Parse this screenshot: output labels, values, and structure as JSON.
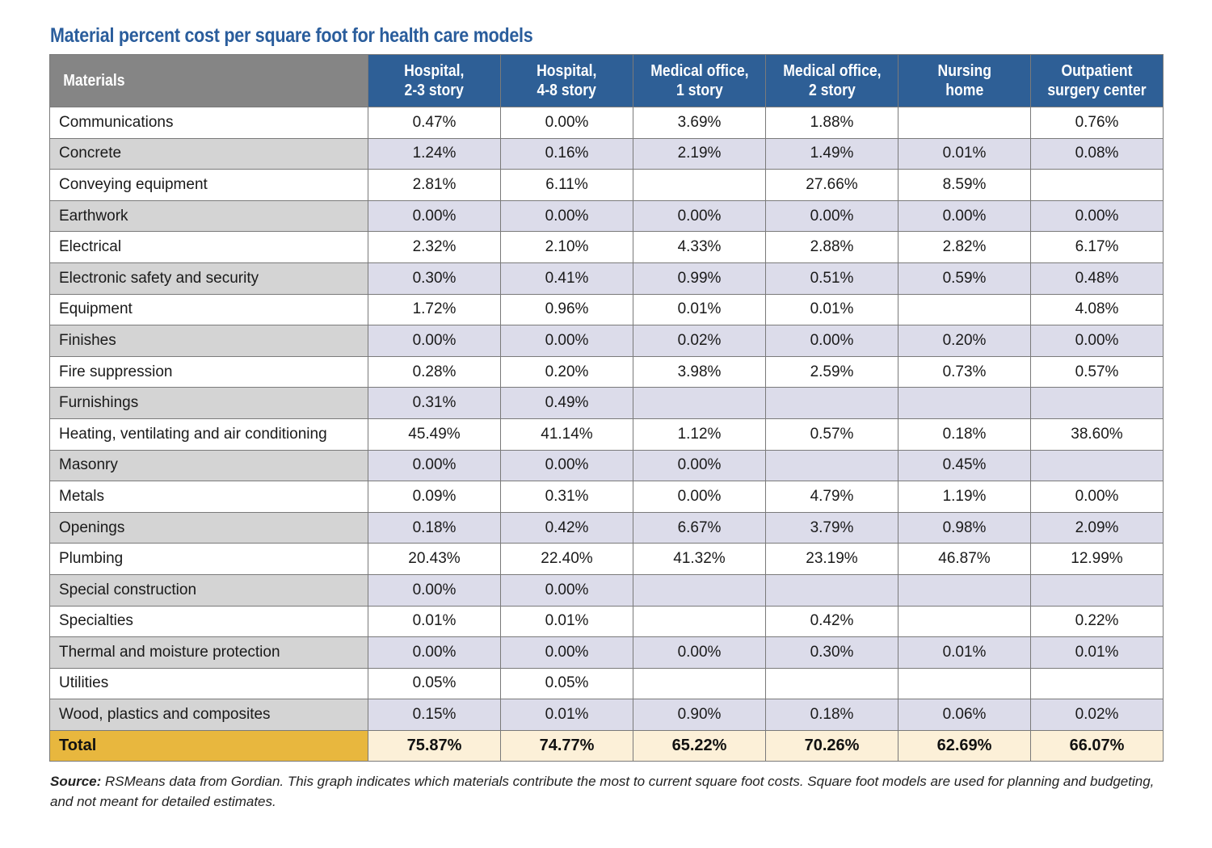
{
  "title": "Material percent cost per square foot for health care models",
  "colors": {
    "header_blue": "#2e5f96",
    "header_gray": "#858585",
    "title": "#2a5d9c",
    "total_gold": "#e8b73e"
  },
  "chart_data": {
    "type": "table",
    "title": "Material percent cost per square foot for health care models",
    "columns": [
      {
        "key": "materials",
        "label_lines": [
          "Materials"
        ]
      },
      {
        "key": "hosp23",
        "label_lines": [
          "Hospital,",
          "2-3 story"
        ]
      },
      {
        "key": "hosp48",
        "label_lines": [
          "Hospital,",
          "4-8 story"
        ]
      },
      {
        "key": "med1",
        "label_lines": [
          "Medical office,",
          "1 story"
        ]
      },
      {
        "key": "med2",
        "label_lines": [
          "Medical office,",
          "2 story"
        ]
      },
      {
        "key": "nursing",
        "label_lines": [
          "Nursing",
          "home"
        ]
      },
      {
        "key": "outpatient",
        "label_lines": [
          "Outpatient",
          "surgery center"
        ]
      }
    ],
    "rows": [
      {
        "material": "Communications",
        "values": [
          "0.47%",
          "0.00%",
          "3.69%",
          "1.88%",
          "",
          "0.76%"
        ]
      },
      {
        "material": "Concrete",
        "values": [
          "1.24%",
          "0.16%",
          "2.19%",
          "1.49%",
          "0.01%",
          "0.08%"
        ]
      },
      {
        "material": "Conveying equipment",
        "values": [
          "2.81%",
          "6.11%",
          "",
          "27.66%",
          "8.59%",
          ""
        ]
      },
      {
        "material": "Earthwork",
        "values": [
          "0.00%",
          "0.00%",
          "0.00%",
          "0.00%",
          "0.00%",
          "0.00%"
        ]
      },
      {
        "material": "Electrical",
        "values": [
          "2.32%",
          "2.10%",
          "4.33%",
          "2.88%",
          "2.82%",
          "6.17%"
        ]
      },
      {
        "material": "Electronic safety and security",
        "values": [
          "0.30%",
          "0.41%",
          "0.99%",
          "0.51%",
          "0.59%",
          "0.48%"
        ]
      },
      {
        "material": "Equipment",
        "values": [
          "1.72%",
          "0.96%",
          "0.01%",
          "0.01%",
          "",
          "4.08%"
        ]
      },
      {
        "material": "Finishes",
        "values": [
          "0.00%",
          "0.00%",
          "0.02%",
          "0.00%",
          "0.20%",
          "0.00%"
        ]
      },
      {
        "material": "Fire suppression",
        "values": [
          "0.28%",
          "0.20%",
          "3.98%",
          "2.59%",
          "0.73%",
          "0.57%"
        ]
      },
      {
        "material": "Furnishings",
        "values": [
          "0.31%",
          "0.49%",
          "",
          "",
          "",
          ""
        ]
      },
      {
        "material": "Heating, ventilating and air conditioning",
        "values": [
          "45.49%",
          "41.14%",
          "1.12%",
          "0.57%",
          "0.18%",
          "38.60%"
        ]
      },
      {
        "material": "Masonry",
        "values": [
          "0.00%",
          "0.00%",
          "0.00%",
          "",
          "0.45%",
          ""
        ]
      },
      {
        "material": "Metals",
        "values": [
          "0.09%",
          "0.31%",
          "0.00%",
          "4.79%",
          "1.19%",
          "0.00%"
        ]
      },
      {
        "material": "Openings",
        "values": [
          "0.18%",
          "0.42%",
          "6.67%",
          "3.79%",
          "0.98%",
          "2.09%"
        ]
      },
      {
        "material": "Plumbing",
        "values": [
          "20.43%",
          "22.40%",
          "41.32%",
          "23.19%",
          "46.87%",
          "12.99%"
        ]
      },
      {
        "material": "Special construction",
        "values": [
          "0.00%",
          "0.00%",
          "",
          "",
          "",
          ""
        ]
      },
      {
        "material": "Specialties",
        "values": [
          "0.01%",
          "0.01%",
          "",
          "0.42%",
          "",
          "0.22%"
        ]
      },
      {
        "material": "Thermal and moisture protection",
        "values": [
          "0.00%",
          "0.00%",
          "0.00%",
          "0.30%",
          "0.01%",
          "0.01%"
        ]
      },
      {
        "material": "Utilities",
        "values": [
          "0.05%",
          "0.05%",
          "",
          "",
          "",
          ""
        ]
      },
      {
        "material": "Wood, plastics and composites",
        "values": [
          "0.15%",
          "0.01%",
          "0.90%",
          "0.18%",
          "0.06%",
          "0.02%"
        ]
      }
    ],
    "total": {
      "label": "Total",
      "values": [
        "75.87%",
        "74.77%",
        "65.22%",
        "70.26%",
        "62.69%",
        "66.07%"
      ]
    }
  },
  "source": {
    "label": "Source:",
    "text": " RSMeans data from Gordian. This graph indicates which materials contribute the most to current square foot costs. Square foot models are used for planning and budgeting, and not meant for detailed estimates."
  }
}
